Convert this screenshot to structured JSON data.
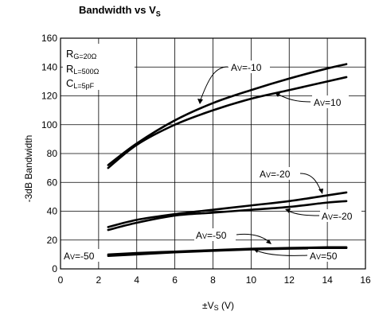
{
  "chart_data": {
    "type": "line",
    "title": "Bandwidth vs VS",
    "xlabel": "±VS (V)",
    "ylabel": "-3dB Bandwidth",
    "xlim": [
      0,
      16
    ],
    "ylim": [
      0,
      160
    ],
    "xticks": [
      0,
      2,
      4,
      6,
      8,
      10,
      12,
      14,
      16
    ],
    "yticks": [
      0,
      20,
      40,
      60,
      80,
      100,
      120,
      140,
      160
    ],
    "grid": true,
    "conditions": [
      "RG=20Ω",
      "RL=500Ω",
      "CL=5pF"
    ],
    "series": [
      {
        "name": "AV=-10",
        "x": [
          2.5,
          4,
          6,
          8,
          10,
          12,
          14,
          15
        ],
        "y": [
          72,
          87,
          103,
          115,
          124,
          132,
          139,
          142
        ]
      },
      {
        "name": "AV=10",
        "x": [
          2.5,
          4,
          6,
          8,
          10,
          12,
          14,
          15
        ],
        "y": [
          70,
          86,
          100,
          110,
          118,
          124,
          130,
          133
        ]
      },
      {
        "name": "AV=-20",
        "x": [
          2.5,
          4,
          6,
          8,
          10,
          12,
          14,
          15
        ],
        "y": [
          29,
          34,
          38,
          41,
          44,
          47,
          51,
          53
        ]
      },
      {
        "name": "AV=-20",
        "x": [
          2.5,
          4,
          6,
          8,
          10,
          12,
          14,
          15
        ],
        "y": [
          27,
          32,
          37,
          39,
          41,
          43,
          46,
          47
        ]
      },
      {
        "name": "AV=-50",
        "x": [
          2.5,
          4,
          6,
          8,
          10,
          12,
          14,
          15
        ],
        "y": [
          10,
          11,
          12,
          13,
          14,
          14.5,
          15,
          15
        ]
      },
      {
        "name": "AV=50",
        "x": [
          2.5,
          4,
          6,
          8,
          10,
          12,
          14,
          15
        ],
        "y": [
          9,
          10,
          11.5,
          12.5,
          13.5,
          14,
          14.5,
          14.5
        ]
      }
    ]
  },
  "labels": {
    "title_main": "Bandwidth vs V",
    "title_sub": "S",
    "xlabel_pre": "±V",
    "xlabel_sub": "S",
    "xlabel_post": " (V)",
    "rg": "G=20Ω",
    "rl": "L=500Ω",
    "cl": "L=5pF",
    "r": "R",
    "c": "C",
    "a": "A",
    "v": "V",
    "curve_avm10": "=-10",
    "curve_av10": "=10",
    "curve_avm20a": "=-20",
    "curve_avm20b": "=-20",
    "curve_avm50": "=-50",
    "curve_avm50_left": "=-50",
    "curve_av50": "=50"
  },
  "colors": {
    "line": "#000000",
    "grid": "#000000",
    "background": "#ffffff"
  }
}
